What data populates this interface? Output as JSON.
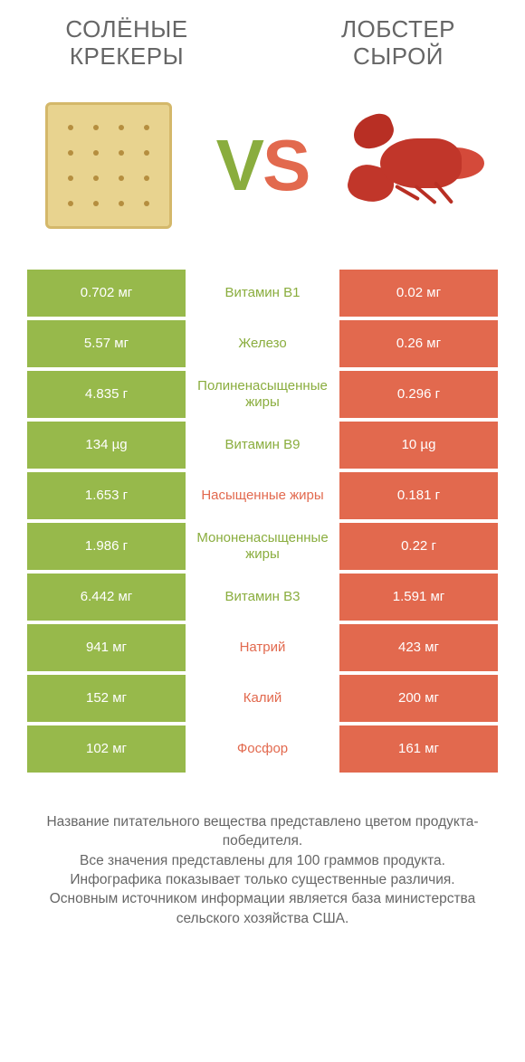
{
  "colors": {
    "green": "#97b94b",
    "red": "#e2694e",
    "green_text": "#8aad3e",
    "red_text": "#e2694e"
  },
  "left_title": "СОЛЁНЫЕ КРЕКЕРЫ",
  "right_title": "ЛОБСТЕР СЫРОЙ",
  "vs_v": "V",
  "vs_s": "S",
  "rows": [
    {
      "left": "0.702 мг",
      "mid": "Витамин B1",
      "right": "0.02 мг",
      "winner": "left"
    },
    {
      "left": "5.57 мг",
      "mid": "Железо",
      "right": "0.26 мг",
      "winner": "left"
    },
    {
      "left": "4.835 г",
      "mid": "Полиненасыщенные жиры",
      "right": "0.296 г",
      "winner": "left"
    },
    {
      "left": "134 µg",
      "mid": "Витамин B9",
      "right": "10 µg",
      "winner": "left"
    },
    {
      "left": "1.653 г",
      "mid": "Насыщенные жиры",
      "right": "0.181 г",
      "winner": "right"
    },
    {
      "left": "1.986 г",
      "mid": "Мононенасыщенные жиры",
      "right": "0.22 г",
      "winner": "left"
    },
    {
      "left": "6.442 мг",
      "mid": "Витамин B3",
      "right": "1.591 мг",
      "winner": "left"
    },
    {
      "left": "941 мг",
      "mid": "Натрий",
      "right": "423 мг",
      "winner": "right"
    },
    {
      "left": "152 мг",
      "mid": "Калий",
      "right": "200 мг",
      "winner": "right"
    },
    {
      "left": "102 мг",
      "mid": "Фосфор",
      "right": "161 мг",
      "winner": "right"
    }
  ],
  "footer_lines": [
    "Название питательного вещества представлено цветом продукта-победителя.",
    "Все значения представлены для 100 граммов продукта.",
    "Инфографика показывает только существенные различия.",
    "Основным источником информации является база министерства сельского хозяйства США."
  ]
}
